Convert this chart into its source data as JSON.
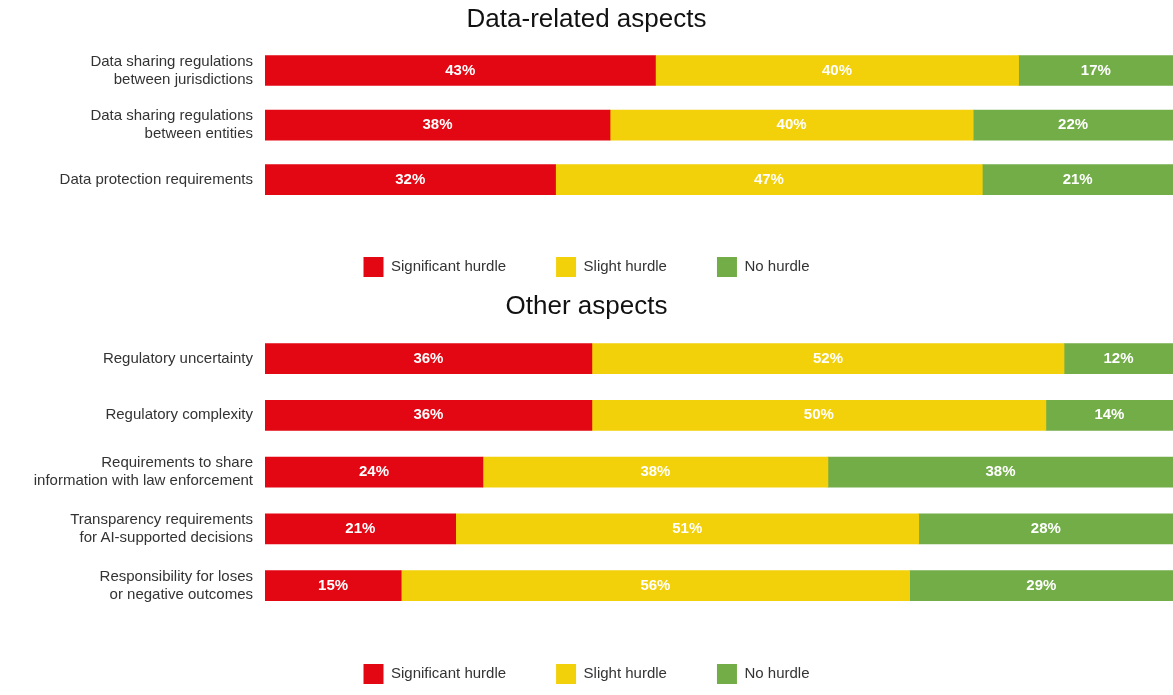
{
  "chart_data": [
    {
      "type": "bar",
      "orientation": "horizontal",
      "stacked": true,
      "title": "Data-related aspects",
      "categories": [
        "Data sharing regulations between jurisdictions",
        "Data sharing regulations between entities",
        "Data protection requirements"
      ],
      "series": [
        {
          "name": "Significant hurdle",
          "color": "#e30613",
          "values": [
            43,
            38,
            32
          ],
          "value_labels": [
            "43%",
            "38%",
            "32%"
          ]
        },
        {
          "name": "Slight hurdle",
          "color": "#f2d00a",
          "values": [
            40,
            40,
            47
          ],
          "value_labels": [
            "40%",
            "40%",
            "47%"
          ]
        },
        {
          "name": "No hurdle",
          "color": "#72ad48",
          "values": [
            17,
            22,
            21
          ],
          "value_labels": [
            "17%",
            "22%",
            "21%"
          ]
        }
      ],
      "tick_labels": "y",
      "legend": "bottom"
    },
    {
      "type": "bar",
      "orientation": "horizontal",
      "stacked": true,
      "title": "Other aspects",
      "categories": [
        "Regulatory uncertainty",
        "Regulatory complexity",
        "Requirements to share information with law enforcement",
        "Transparency requirements for AI-supported decisions",
        "Responsibility for loses or negative outcomes"
      ],
      "series": [
        {
          "name": "Significant hurdle",
          "color": "#e30613",
          "values": [
            36,
            36,
            24,
            21,
            15
          ],
          "value_labels": [
            "36%",
            "36%",
            "24%",
            "21%",
            "15%"
          ]
        },
        {
          "name": "Slight hurdle",
          "color": "#f2d00a",
          "values": [
            52,
            50,
            38,
            51,
            56
          ],
          "value_labels": [
            "52%",
            "50%",
            "38%",
            "51%",
            "56%"
          ]
        },
        {
          "name": "No hurdle",
          "color": "#72ad48",
          "values": [
            12,
            14,
            38,
            28,
            29
          ],
          "value_labels": [
            "12%",
            "14%",
            "38%",
            "28%",
            "29%"
          ]
        }
      ],
      "tick_labels": "y",
      "legend": "bottom"
    }
  ]
}
